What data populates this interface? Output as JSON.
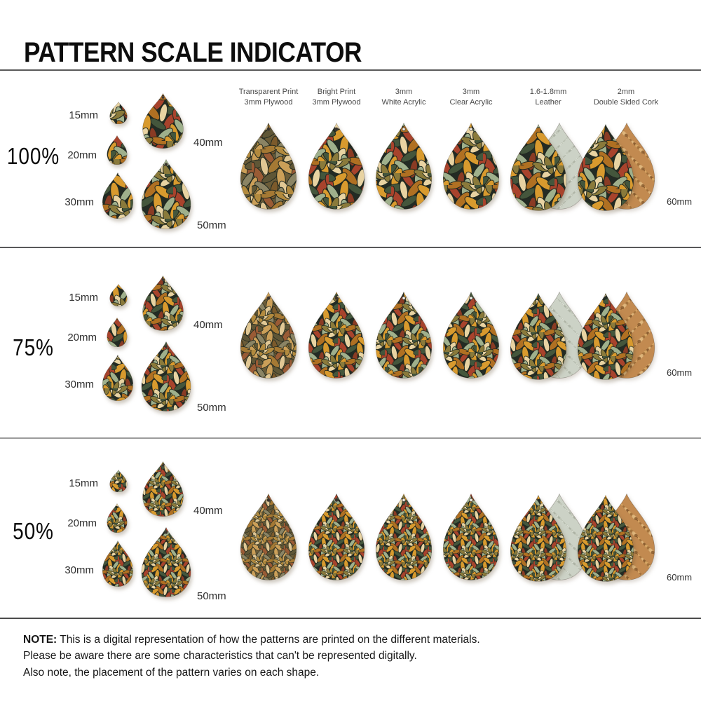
{
  "title": "PATTERN SCALE INDICATOR",
  "material_headers": [
    {
      "line1": "Transparent Print",
      "line2": "3mm Plywood"
    },
    {
      "line1": "Bright Print",
      "line2": "3mm Plywood"
    },
    {
      "line1": "3mm",
      "line2": "White Acrylic"
    },
    {
      "line1": "3mm",
      "line2": "Clear Acrylic"
    },
    {
      "line1": "1.6-1.8mm",
      "line2": "Leather"
    },
    {
      "line1": "2mm",
      "line2": "Double Sided Cork"
    }
  ],
  "rows": [
    {
      "percent_label": "100%",
      "pattern_scale": "100%",
      "sizes": [
        "15mm",
        "20mm",
        "30mm",
        "40mm",
        "50mm"
      ],
      "max_size_label": "60mm"
    },
    {
      "percent_label": "75%",
      "pattern_scale": "75%",
      "sizes": [
        "15mm",
        "20mm",
        "30mm",
        "40mm",
        "50mm"
      ],
      "max_size_label": "60mm"
    },
    {
      "percent_label": "50%",
      "pattern_scale": "50%",
      "sizes": [
        "15mm",
        "20mm",
        "30mm",
        "40mm",
        "50mm"
      ],
      "max_size_label": "60mm"
    }
  ],
  "note": {
    "label": "NOTE:",
    "lines": [
      "This is a digital representation of how the patterns are printed on the different materials.",
      "Please be aware there are some characteristics that can't be represented digitally.",
      "Also note, the placement of the pattern varies on each shape."
    ]
  },
  "colors": {
    "pattern_bright": {
      "background": "#232b24",
      "leaves": [
        "#d89a2e",
        "#b07022",
        "#a8432c",
        "#8a3b24",
        "#e8d3a2",
        "#9fb08c",
        "#44563c",
        "#8a7a3b"
      ]
    },
    "pattern_transparent_wood": {
      "background": "#6b5c38",
      "leaves": [
        "#cb9f58",
        "#a57934",
        "#9a5b35",
        "#7c5a2b",
        "#e0c794",
        "#8b8464",
        "#5f5636",
        "#b28a3e"
      ]
    },
    "leather_back": {
      "background": "#ccd2c6",
      "speckles": [
        "#bdc3b5",
        "#e3e8dd",
        "#aab1a2"
      ]
    },
    "cork_back": {
      "background": "#c28a50",
      "speckles": [
        "#a1703a",
        "#dfb67c",
        "#8a5c2e",
        "#d9a865"
      ]
    },
    "divider": "#5a5a5a",
    "text_dark": "#0d0d0d",
    "text_gray": "#4a4a4a"
  }
}
